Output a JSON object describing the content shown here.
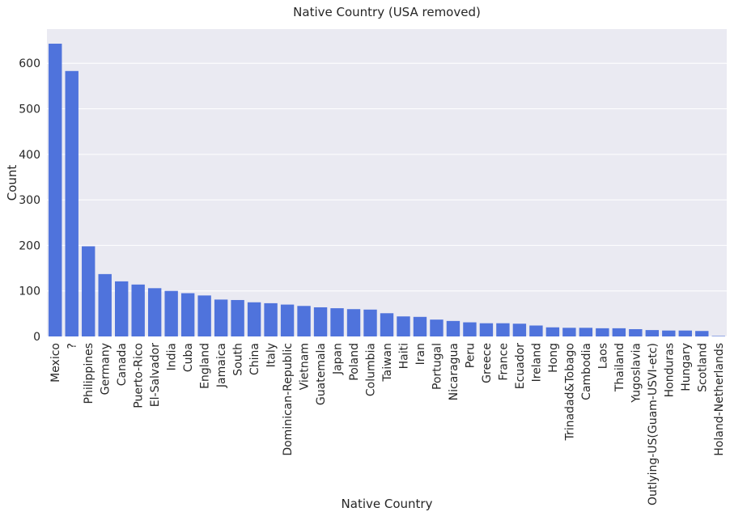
{
  "chart_data": {
    "type": "bar",
    "title": "Native Country (USA removed)",
    "xlabel": "Native Country",
    "ylabel": "Count",
    "ylim": [
      0,
      675
    ],
    "yticks": [
      0,
      100,
      200,
      300,
      400,
      500,
      600
    ],
    "bar_color": "#4f73dc",
    "background": "#eaeaf2",
    "grid": true,
    "categories": [
      "Mexico",
      "?",
      "Philippines",
      "Germany",
      "Canada",
      "Puerto-Rico",
      "El-Salvador",
      "India",
      "Cuba",
      "England",
      "Jamaica",
      "South",
      "China",
      "Italy",
      "Dominican-Republic",
      "Vietnam",
      "Guatemala",
      "Japan",
      "Poland",
      "Columbia",
      "Taiwan",
      "Haiti",
      "Iran",
      "Portugal",
      "Nicaragua",
      "Peru",
      "Greece",
      "France",
      "Ecuador",
      "Ireland",
      "Hong",
      "Trinadad&Tobago",
      "Cambodia",
      "Laos",
      "Thailand",
      "Yugoslavia",
      "Outlying-US(Guam-USVI-etc)",
      "Honduras",
      "Hungary",
      "Scotland",
      "Holand-Netherlands"
    ],
    "values": [
      643,
      583,
      198,
      137,
      121,
      114,
      106,
      100,
      95,
      90,
      81,
      80,
      75,
      73,
      70,
      67,
      64,
      62,
      60,
      59,
      51,
      44,
      43,
      37,
      34,
      31,
      29,
      29,
      28,
      24,
      20,
      19,
      19,
      18,
      18,
      16,
      14,
      13,
      13,
      12,
      1
    ]
  }
}
